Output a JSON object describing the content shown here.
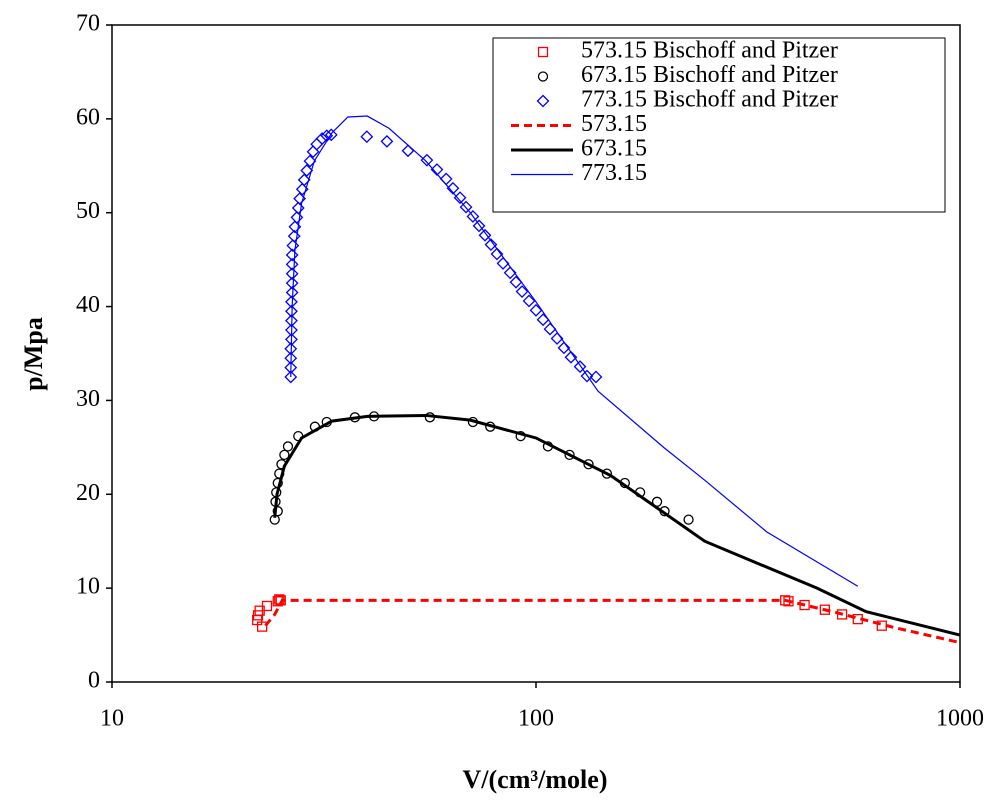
{
  "chart_data": {
    "type": "line",
    "x_label": "V/(cm³/mole)",
    "y_label": "p/Mpa",
    "x_scale": "log",
    "xlim": [
      10,
      1000
    ],
    "xticks": [
      10,
      100,
      1000
    ],
    "ylim": [
      0,
      70
    ],
    "yticks": [
      0,
      10,
      20,
      30,
      40,
      50,
      60,
      70
    ],
    "legend": "upper right",
    "series": [
      {
        "name": "573.15 Bischoff and Pitzer",
        "color": "#ff0000",
        "marker": "square",
        "x": [
          22.0,
          22.1,
          22.3,
          22.6,
          23.2,
          24.6,
          24.8,
          25.0,
          387,
          394,
          430,
          480,
          527,
          574,
          654
        ],
        "values": [
          6.6,
          7.1,
          7.6,
          5.9,
          8.1,
          8.6,
          8.8,
          8.7,
          8.7,
          8.6,
          8.2,
          7.7,
          7.2,
          6.7,
          6.0
        ]
      },
      {
        "name": "673.15 Bischoff and Pitzer",
        "color": "#000000",
        "marker": "circle",
        "x": [
          24.2,
          24.6,
          24.3,
          24.4,
          24.6,
          24.8,
          25.1,
          25.5,
          26.0,
          27.5,
          30.1,
          32.1,
          37.4,
          41.5,
          56.2,
          71,
          78,
          92,
          106.7,
          120,
          133,
          147,
          162,
          176,
          193,
          201,
          229
        ],
        "values": [
          17.3,
          18.2,
          19.2,
          20.2,
          21.2,
          22.2,
          23.2,
          24.2,
          25.1,
          26.2,
          27.2,
          27.7,
          28.2,
          28.3,
          28.2,
          27.7,
          27.2,
          26.2,
          25.1,
          24.2,
          23.2,
          22.2,
          21.2,
          20.2,
          19.2,
          18.2,
          17.3
        ]
      },
      {
        "name": "773.15 Bischoff and Pitzer",
        "color": "#0000ff",
        "marker": "diamond",
        "x": [
          26.4,
          26.4,
          26.4,
          26.4,
          26.5,
          26.5,
          26.5,
          26.5,
          26.5,
          26.6,
          26.6,
          26.6,
          26.6,
          26.6,
          26.7,
          26.9,
          27.0,
          27.3,
          27.5,
          27.7,
          28.1,
          28.4,
          28.8,
          29.3,
          29.8,
          30.4,
          31.3,
          32.1,
          32.9,
          39.9,
          44.5,
          49.9,
          55.3,
          58.4,
          61.4,
          63.7,
          66.2,
          68.4,
          71.0,
          73.4,
          75.8,
          78.3,
          80.9,
          83.6,
          86.9,
          89.7,
          92.7,
          96.3,
          100,
          103.9,
          107.9,
          112.1,
          116.4,
          120.9,
          127.0,
          131.9,
          138.5
        ],
        "values": [
          32.5,
          33.5,
          34.5,
          35.5,
          36.5,
          37.5,
          38.5,
          39.5,
          40.5,
          41.5,
          42.5,
          43.5,
          44.5,
          45.5,
          46.5,
          47.5,
          48.5,
          49.5,
          50.5,
          51.5,
          52.5,
          53.5,
          54.5,
          55.5,
          56.5,
          57.3,
          57.9,
          58.2,
          58.3,
          58.1,
          57.6,
          56.6,
          55.6,
          54.6,
          53.6,
          52.6,
          51.6,
          50.6,
          49.6,
          48.6,
          47.6,
          46.6,
          45.6,
          44.6,
          43.6,
          42.6,
          41.6,
          40.6,
          39.6,
          38.6,
          37.6,
          36.6,
          35.6,
          34.6,
          33.6,
          32.6,
          32.5
        ]
      },
      {
        "name": "573.15",
        "color": "#ff0000",
        "dash": true,
        "line_width": 3,
        "x": [
          23.0,
          24.2,
          25.2,
          387,
          500,
          700,
          1000
        ],
        "values": [
          6.0,
          7.2,
          8.7,
          8.7,
          7.5,
          5.8,
          4.2
        ]
      },
      {
        "name": "673.15",
        "color": "#000000",
        "line_width": 3,
        "x": [
          24.2,
          24.5,
          25.5,
          28,
          33,
          40,
          55,
          70,
          100,
          150,
          250,
          460,
          600,
          1000
        ],
        "values": [
          17.5,
          20,
          23,
          26,
          27.8,
          28.3,
          28.4,
          27.9,
          26,
          22,
          15,
          10,
          7.5,
          5
        ]
      },
      {
        "name": "773.15",
        "color": "#0000ff",
        "line_width": 1.2,
        "x": [
          26.4,
          26.6,
          27,
          28,
          30,
          33,
          36,
          40,
          45,
          55,
          70,
          100,
          140,
          200,
          250,
          350,
          574
        ],
        "values": [
          32.5,
          40,
          46,
          51,
          55.5,
          58.5,
          60.2,
          60.3,
          59,
          55.5,
          50,
          40.5,
          31,
          25,
          21.5,
          16,
          10.2
        ]
      }
    ]
  }
}
